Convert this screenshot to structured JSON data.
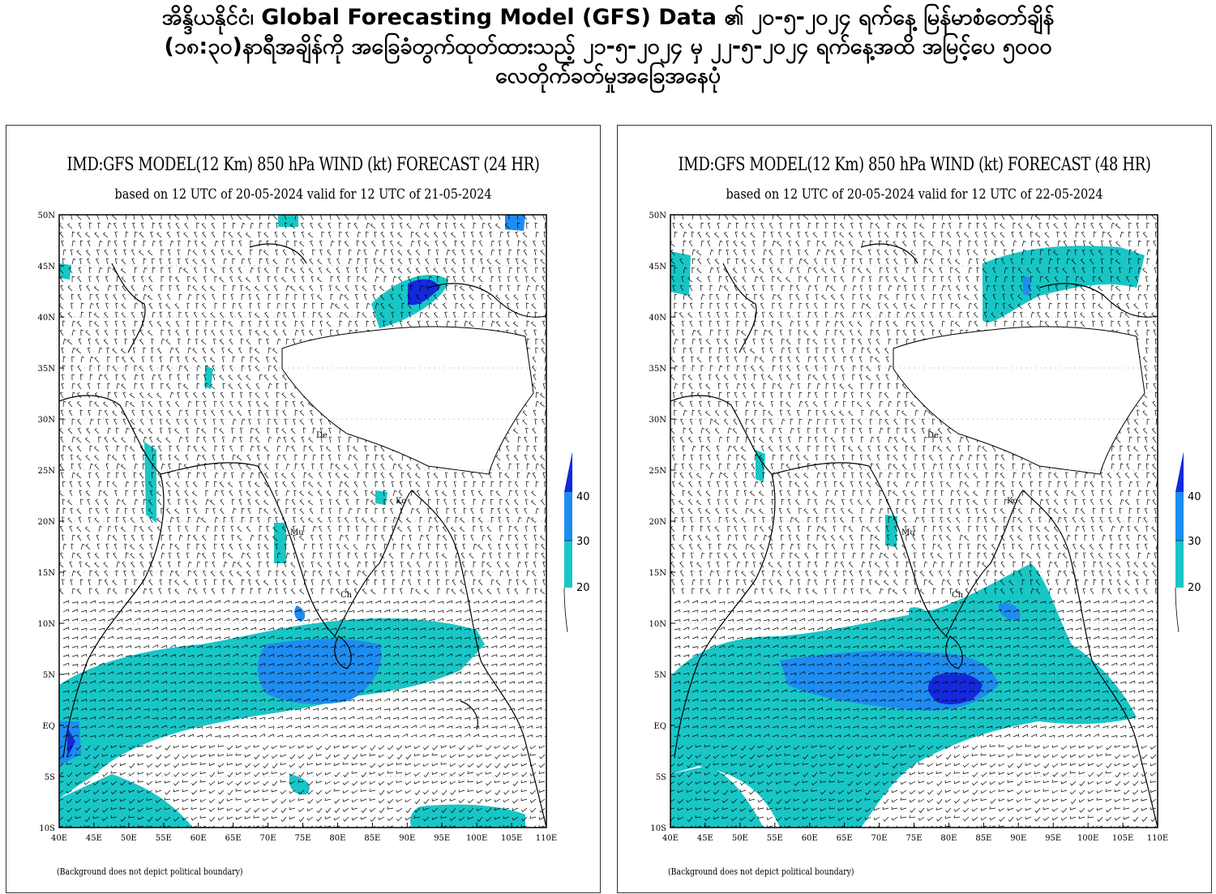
{
  "header": {
    "line1": "အိန္ဒိယနိုင်ငံ၊ Global Forecasting Model (GFS) Data ၏ ၂၀-၅-၂၀၂၄ ရက်နေ့ မြန်မာစံတော်ချိန်",
    "line2": "(၁၈:၃၀)နာရီအချိန်ကို အခြေခံတွက်ထုတ်ထားသည့် ၂၁-၅-၂၀၂၄ မှ ၂၂-၅-၂၀၂၄ ရက်နေ့အထိ အမြင့်ပေ ၅၀၀၀",
    "line3": "လေတိုက်ခတ်မှုအခြေအနေပုံ"
  },
  "panels": [
    {
      "title": "IMD:GFS MODEL(12 Km) 850 hPa WIND (kt) FORECAST (24 HR)",
      "subtitle": "based on 12 UTC of 20-05-2024 valid for 12 UTC of 21-05-2024",
      "note": "(Background does not depict political boundary)",
      "cities": [
        "De",
        "Mu",
        "Ch",
        "Ko"
      ]
    },
    {
      "title": "IMD:GFS MODEL(12 Km) 850 hPa WIND (kt) FORECAST (48 HR)",
      "subtitle": "based on 12 UTC of 20-05-2024 valid for 12 UTC of 22-05-2024",
      "note": "(Background does not depict political boundary)",
      "cities": [
        "De",
        "Mu",
        "Ch",
        "Ko"
      ]
    }
  ],
  "axes": {
    "lat_labels": [
      "50N",
      "45N",
      "40N",
      "35N",
      "30N",
      "25N",
      "20N",
      "15N",
      "10N",
      "5N",
      "EQ",
      "5S",
      "10S"
    ],
    "lon_labels": [
      "40E",
      "45E",
      "50E",
      "55E",
      "60E",
      "65E",
      "70E",
      "75E",
      "80E",
      "85E",
      "90E",
      "95E",
      "100E",
      "105E",
      "110E"
    ]
  },
  "colorbar": {
    "labels": [
      "40",
      "30",
      "20"
    ],
    "colors": {
      "c20": "#18c6c6",
      "c30": "#1e8cf0",
      "c40": "#1428dc"
    }
  }
}
